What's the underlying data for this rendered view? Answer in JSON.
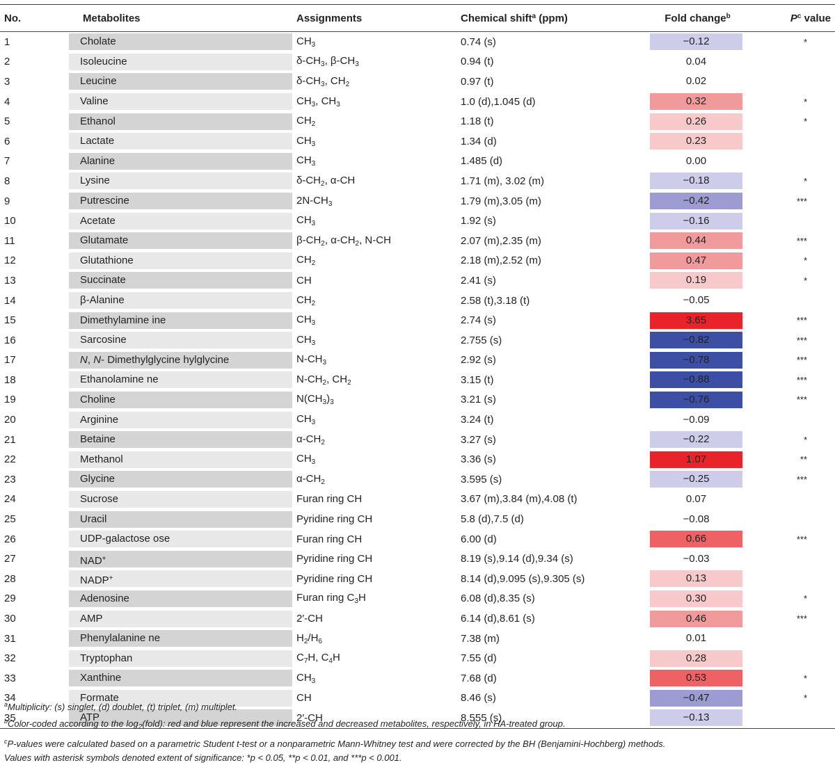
{
  "header": {
    "no": "No.",
    "metabolites": "Metabolites",
    "assignments": "Assignments",
    "chemical_shift": "Chemical shift",
    "chemical_shift_sup": "a",
    "chemical_shift_unit": " (ppm)",
    "fold_change": "Fold change",
    "fold_change_sup": "b",
    "p_main": "P",
    "p_sup": "c",
    "p_rest": " value"
  },
  "rows": [
    {
      "no": "1",
      "met": "Cholate",
      "assign": "CH<sub>3</sub>",
      "shift": "0.74 (s)",
      "fold": "−0.12",
      "p": "*",
      "color": "#cdcde9"
    },
    {
      "no": "2",
      "met": "Isoleucine",
      "assign": "δ-CH<sub>3</sub>, β-CH<sub>3</sub>",
      "shift": "0.94 (t)",
      "fold": "0.04",
      "p": "",
      "color": ""
    },
    {
      "no": "3",
      "met": "Leucine",
      "assign": "δ-CH<sub>3</sub>, CH<sub>2</sub>",
      "shift": "0.97 (t)",
      "fold": "0.02",
      "p": "",
      "color": ""
    },
    {
      "no": "4",
      "met": "Valine",
      "assign": "CH<sub>3</sub>, CH<sub>3</sub>",
      "shift": "1.0 (d),1.045 (d)",
      "fold": "0.32",
      "p": "*",
      "color": "#f19a9c"
    },
    {
      "no": "5",
      "met": "Ethanol",
      "assign": "CH<sub>2</sub>",
      "shift": "1.18 (t)",
      "fold": "0.26",
      "p": "*",
      "color": "#f8c9ca"
    },
    {
      "no": "6",
      "met": "Lactate",
      "assign": "CH<sub>3</sub>",
      "shift": "1.34 (d)",
      "fold": "0.23",
      "p": "",
      "color": "#f8c9ca"
    },
    {
      "no": "7",
      "met": "Alanine",
      "assign": "CH<sub>3</sub>",
      "shift": "1.485 (d)",
      "fold": "0.00",
      "p": "",
      "color": ""
    },
    {
      "no": "8",
      "met": "Lysine",
      "assign": "δ-CH<sub>2</sub>, α-CH",
      "shift": "1.71 (m), 3.02 (m)",
      "fold": "−0.18",
      "p": "*",
      "color": "#cdcde9"
    },
    {
      "no": "9",
      "met": "Putrescine",
      "assign": "2N-CH<sub>3</sub>",
      "shift": "1.79 (m),3.05 (m)",
      "fold": "−0.42",
      "p": "***",
      "color": "#9c9cd2"
    },
    {
      "no": "10",
      "met": "Acetate",
      "assign": "CH<sub>3</sub>",
      "shift": "1.92 (s)",
      "fold": "−0.16",
      "p": "",
      "color": "#cdcde9"
    },
    {
      "no": "11",
      "met": "Glutamate",
      "assign": "β-CH<sub>2</sub>, α-CH<sub>2</sub>, N-CH",
      "shift": "2.07 (m),2.35 (m)",
      "fold": "0.44",
      "p": "***",
      "color": "#f19a9c"
    },
    {
      "no": "12",
      "met": "Glutathione",
      "assign": "CH<sub>2</sub>",
      "shift": "2.18 (m),2.52 (m)",
      "fold": "0.47",
      "p": "*",
      "color": "#f19a9c"
    },
    {
      "no": "13",
      "met": "Succinate",
      "assign": "CH",
      "shift": "2.41 (s)",
      "fold": "0.19",
      "p": "*",
      "color": "#f8c9ca"
    },
    {
      "no": "14",
      "met": "β-Alanine",
      "assign": "CH<sub>2</sub>",
      "shift": "2.58 (t),3.18 (t)",
      "fold": "−0.05",
      "p": "",
      "color": ""
    },
    {
      "no": "15",
      "met": "Dimethylamine ine",
      "assign": "CH<sub>3</sub>",
      "shift": "2.74 (s)",
      "fold": "3.65",
      "p": "***",
      "color": "#e8242a"
    },
    {
      "no": "16",
      "met": "Sarcosine",
      "assign": "CH<sub>3</sub>",
      "shift": "2.755 (s)",
      "fold": "−0.82",
      "p": "***",
      "color": "#3d4fa5"
    },
    {
      "no": "17",
      "met": "<i>N</i>, <i>N</i>- Dimethylglycine hylglycine",
      "assign": "N-CH<sub>3</sub>",
      "shift": "2.92 (s)",
      "fold": "−0.78",
      "p": "***",
      "color": "#3d4fa5"
    },
    {
      "no": "18",
      "met": "Ethanolamine ne",
      "assign": "N-CH<sub>2</sub>, CH<sub>2</sub>",
      "shift": "3.15 (t)",
      "fold": "−0.88",
      "p": "***",
      "color": "#3d4fa5"
    },
    {
      "no": "19",
      "met": "Choline",
      "assign": "N(CH<sub>3</sub>)<sub>3</sub>",
      "shift": "3.21 (s)",
      "fold": "−0.76",
      "p": "***",
      "color": "#3d4fa5"
    },
    {
      "no": "20",
      "met": "Arginine",
      "assign": "CH<sub>3</sub>",
      "shift": "3.24 (t)",
      "fold": "−0.09",
      "p": "",
      "color": ""
    },
    {
      "no": "21",
      "met": "Betaine",
      "assign": "α-CH<sub>2</sub>",
      "shift": "3.27 (s)",
      "fold": "−0.22",
      "p": "*",
      "color": "#cdcde9"
    },
    {
      "no": "22",
      "met": "Methanol",
      "assign": "CH<sub>3</sub>",
      "shift": "3.36 (s)",
      "fold": "1.07",
      "p": "**",
      "color": "#e8242a"
    },
    {
      "no": "23",
      "met": "Glycine",
      "assign": "α-CH<sub>2</sub>",
      "shift": "3.595 (s)",
      "fold": "−0.25",
      "p": "***",
      "color": "#cdcde9"
    },
    {
      "no": "24",
      "met": "Sucrose",
      "assign": "Furan ring CH",
      "shift": "3.67 (m),3.84 (m),4.08 (t)",
      "fold": "0.07",
      "p": "",
      "color": ""
    },
    {
      "no": "25",
      "met": "Uracil",
      "assign": "Pyridine ring CH",
      "shift": "5.8 (d),7.5 (d)",
      "fold": "−0.08",
      "p": "",
      "color": ""
    },
    {
      "no": "26",
      "met": "UDP-galactose ose",
      "assign": "Furan ring CH",
      "shift": "6.00 (d)",
      "fold": "0.66",
      "p": "***",
      "color": "#ee6165"
    },
    {
      "no": "27",
      "met": "NAD<sup>+</sup>",
      "assign": "Pyridine ring CH",
      "shift": "8.19 (s),9.14 (d),9.34 (s)",
      "fold": "−0.03",
      "p": "",
      "color": ""
    },
    {
      "no": "28",
      "met": "NADP<sup>+</sup>",
      "assign": "Pyridine ring CH",
      "shift": "8.14 (d),9.095 (s),9.305 (s)",
      "fold": "0.13",
      "p": "",
      "color": "#f8c9ca"
    },
    {
      "no": "29",
      "met": "Adenosine",
      "assign": "Furan ring C<sub>3</sub>H",
      "shift": "6.08 (d),8.35 (s)",
      "fold": "0.30",
      "p": "*",
      "color": "#f8c9ca"
    },
    {
      "no": "30",
      "met": "AMP",
      "assign": "2′-CH",
      "shift": "6.14 (d),8.61 (s)",
      "fold": "0.46",
      "p": "***",
      "color": "#f19a9c"
    },
    {
      "no": "31",
      "met": "Phenylalanine ne",
      "assign": "H<sub>2</sub>/H<sub>6</sub>",
      "shift": "7.38 (m)",
      "fold": "0.01",
      "p": "",
      "color": ""
    },
    {
      "no": "32",
      "met": "Tryptophan",
      "assign": "C<sub>7</sub>H, C<sub>4</sub>H",
      "shift": "7.55 (d)",
      "fold": "0.28",
      "p": "",
      "color": "#f8c9ca"
    },
    {
      "no": "33",
      "met": "Xanthine",
      "assign": "CH<sub>3</sub>",
      "shift": "7.68 (d)",
      "fold": "0.53",
      "p": "*",
      "color": "#ee6165"
    },
    {
      "no": "34",
      "met": "Formate",
      "assign": "CH",
      "shift": "8.46 (s)",
      "fold": "−0.47",
      "p": "*",
      "color": "#9c9cd2"
    },
    {
      "no": "35",
      "met": "ATP",
      "assign": "2′-CH",
      "shift": "8.555 (s)",
      "fold": "−0.13",
      "p": "",
      "color": "#cdcde9"
    }
  ],
  "notes": {
    "a": "<sup>a</sup>Multiplicity: (s) singlet, (d) doublet, (t) triplet, (m) multiplet.",
    "b": "<sup>b</sup>Color-coded according to the log<sub>2</sub>(fold): red and blue represent the increased and decreased metabolites, respectively, in HA-treated group.",
    "c": "<sup>c</sup>P-values were calculated based on a parametric Student t-test or a nonparametric Mann-Whitney test and were corrected by the BH (Benjamini-Hochberg) methods.",
    "d": "Values with asterisk symbols denoted extent of significance: *p &lt; 0.05, **p &lt; 0.01, and ***p &lt; 0.001."
  },
  "colors": {
    "metabolite_band_dark": "#d4d4d4",
    "metabolite_band_light": "#e8e8e8",
    "red_strong": "#e8242a",
    "red_mid": "#ee6165",
    "red_light": "#f19a9c",
    "red_pale": "#f8c9ca",
    "blue_strong": "#3d4fa5",
    "blue_mid": "#9c9cd2",
    "blue_pale": "#cdcde9"
  }
}
